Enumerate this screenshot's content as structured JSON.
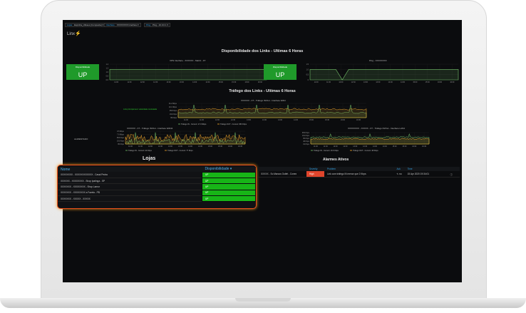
{
  "toolbar": {
    "variables": [
      {
        "label": "Lojas",
        "value": "Espinha_Ulisses (Compacta) ▾"
      },
      {
        "label": "Interface",
        "value": "XXXXXXXX Interface ▾"
      },
      {
        "label": "Ping",
        "value": "Ping - 10.0.0.1 ▾"
      }
    ]
  },
  "logo": "Linx",
  "availability": {
    "title": "Disponibilidade dos Links - Ultimas 6 Horas",
    "panels": [
      {
        "chart_title": "VPN Interface - XXXXXX - Matriz - FT",
        "stat_label": "Disponibilidade",
        "stat_value": "UP",
        "yticks": [
          "1.4",
          "1.2",
          "1.0",
          "0.8",
          "0.6"
        ],
        "values": [
          1,
          1,
          1,
          1,
          1,
          1,
          1,
          1,
          1,
          1,
          1,
          1
        ]
      },
      {
        "chart_title": "Ping - XXXXXXXX",
        "stat_label": "Disponibilidade",
        "stat_value": "UP",
        "yticks": [
          "1.5",
          "1.0",
          "0.5",
          "0"
        ],
        "values": [
          1,
          1,
          1,
          1,
          1,
          0,
          1,
          1,
          1,
          1,
          1,
          1,
          1,
          1,
          1,
          1,
          1,
          1,
          1,
          1,
          1,
          1,
          1,
          1
        ]
      }
    ],
    "xticks": [
      "11:00",
      "11:30",
      "12:00",
      "12:30",
      "13:00",
      "13:30",
      "14:00",
      "14:30",
      "15:00",
      "15:30",
      "16:00",
      "16:30"
    ]
  },
  "traffic": {
    "title": "Tráfego dos Links - Ultimas 6 Horas",
    "charts": [
      {
        "title": "XXXXXX - FT - Tráfego IN/Out - Interface WAN",
        "side_label": "Link principal sem velocidade contratada",
        "yticks": [
          "34.2 Mbps",
          "19.1 Mbps",
          "953 Kbps",
          "191 Kbps",
          "95 Kbps"
        ],
        "legend": [
          "Tráfego IN - Current: 17.0 Mbps",
          "Tráfego OUT - Current: 953 Kbps"
        ],
        "xticks": [
          "11:00",
          "11:30",
          "12:00",
          "12:30",
          "13:00",
          "13:30",
          "14:00",
          "14:30",
          "15:00",
          "15:30",
          "16:00",
          "16:30"
        ]
      },
      {
        "title": "XXXXXX - FT - Tráfego IN/Out - Interface WAN2",
        "side_label": "ALIMENTADO",
        "yticks": [
          "9.5 Mbps",
          "7.6 Mbps",
          "953 Kbps",
          "191 Kbps",
          "95 Kbps"
        ],
        "legend": [
          "Tráfego IN - Current: 24 Kbps",
          "Tráfego OUT - Current: 77 Kbps"
        ],
        "xticks": [
          "11:00",
          "11:30",
          "12:00",
          "12:30",
          "13:00",
          "13:30",
          "14:00",
          "14:30",
          "15:00",
          "15:30",
          "16:00",
          "16:30"
        ]
      },
      {
        "title": "XXXXXXXX - XXXXX - FT - Tráfego IN/Out - Interface LAN4",
        "yticks": [
          "953 Kbps",
          "191 Kbps",
          "95 Kbps",
          "48 Kbps",
          "19 Kbps"
        ],
        "legend": [
          "Tráfego IN - Current: 13.6 Kbps",
          "Tráfego OUT - Current: 48 Kbps"
        ],
        "xticks": [
          "11:00",
          "11:30",
          "12:00",
          "12:30",
          "13:00",
          "13:30",
          "14:00",
          "14:30",
          "15:00",
          "15:30",
          "16:00",
          "16:30"
        ]
      }
    ]
  },
  "colors": {
    "in": "#73bf69",
    "out": "#f2a72b",
    "up": "#17b517",
    "high": "#e0452c",
    "accent": "#33a2e5",
    "frame": "#e94e1b"
  },
  "lojas": {
    "title": "Lojas",
    "headers": [
      "Nome",
      "Disponibilidade ▾"
    ],
    "rows": [
      {
        "name": "XXXXXXXX - XXXXXXXXXXXX - Casal Pedra",
        "status": "UP"
      },
      {
        "name": "XXXXXX - XXXXXXXX - Shop Ipatinga - SP",
        "status": "UP"
      },
      {
        "name": "XXXXXXX - XXXXXXXX - Shop Lamor",
        "status": "UP"
      },
      {
        "name": "XXXXXXX - XXXXXXXX a Favela - PB",
        "status": "UP"
      },
      {
        "name": "XXXXXXX - XXXXX - XXXXX",
        "status": "UP"
      }
    ]
  },
  "alarmes": {
    "title": "Alarmes Ativos",
    "headers": [
      "Severity",
      "Problem",
      "Ack",
      "Time"
    ],
    "rows": [
      {
        "host": "XXXXX - So Marcos Outlet - Conex",
        "severity": "High",
        "problem": "Link com tráfego IN menor que 2 Kbps",
        "ack": "✎ no",
        "time": "15 Apr 2020 19:34:01"
      }
    ]
  }
}
